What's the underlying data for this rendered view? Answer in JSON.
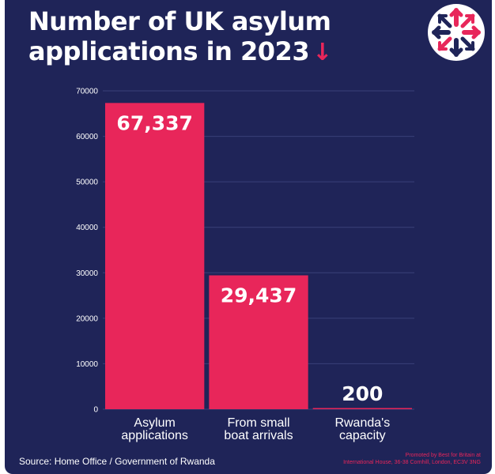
{
  "header": {
    "title_line1": "Number of UK asylum",
    "title_line2": "applications in 2023",
    "title_arrow": "↓",
    "logo_icon": "union-flag-arrows-logo"
  },
  "colors": {
    "background": "#1f2458",
    "bar": "#e8265a",
    "text": "#ffffff",
    "grid": "#3a4078"
  },
  "chart_data": {
    "type": "bar",
    "categories": [
      "Asylum\napplications",
      "From small\nboat arrivals",
      "Rwanda's\ncapacity"
    ],
    "values": [
      67337,
      29437,
      200
    ],
    "data_labels": [
      "67,337",
      "29,437",
      "200"
    ],
    "title": "Number of UK asylum applications in 2023",
    "xlabel": "",
    "ylabel": "",
    "ylim": [
      0,
      70000
    ],
    "yticks": [
      0,
      10000,
      20000,
      30000,
      40000,
      50000,
      60000,
      70000
    ],
    "ytick_labels": [
      "0",
      "10000",
      "20000",
      "30000",
      "40000",
      "50000",
      "60000",
      "70000"
    ],
    "grid": true,
    "legend": "none"
  },
  "footer": {
    "source": "Source: Home Office / Government of Rwanda",
    "promoted": "Promoted by Best for Britain at\nInternational House, 36-38 Cornhill, London, EC3V 3NG"
  }
}
